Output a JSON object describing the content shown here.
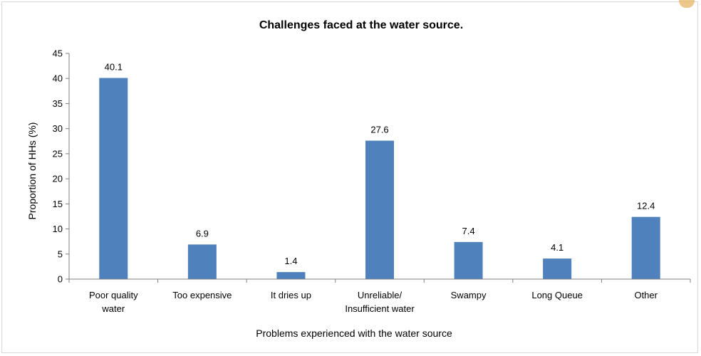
{
  "chart_data": {
    "type": "bar",
    "title": "Challenges faced at the water source.",
    "xlabel": "Problems experienced with the water source",
    "ylabel": "Proportion of HHs (%)",
    "ylim": [
      0,
      45
    ],
    "yticks": [
      0,
      5,
      10,
      15,
      20,
      25,
      30,
      35,
      40,
      45
    ],
    "categories": [
      [
        "Poor quality",
        "water"
      ],
      [
        "Too expensive"
      ],
      [
        "It dries up"
      ],
      [
        "Unreliable/",
        "Insufficient water"
      ],
      [
        "Swampy"
      ],
      [
        "Long Queue"
      ],
      [
        "Other"
      ]
    ],
    "values": [
      40.1,
      6.9,
      1.4,
      27.6,
      7.4,
      4.1,
      12.4
    ],
    "value_labels": [
      "40.1",
      "6.9",
      "1.4",
      "27.6",
      "7.4",
      "4.1",
      "12.4"
    ],
    "grid": false,
    "legend": "none",
    "bar_color": "#4f81bd"
  }
}
